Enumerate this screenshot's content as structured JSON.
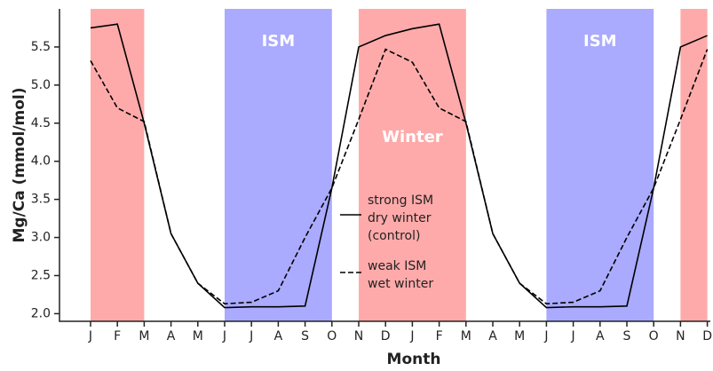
{
  "chart_data": {
    "type": "line",
    "x_label": "Month",
    "y_label": "Mg/Ca (mmol/mol)",
    "categories": [
      "J",
      "F",
      "M",
      "A",
      "M",
      "J",
      "J",
      "A",
      "S",
      "O",
      "N",
      "D",
      "J",
      "F",
      "M",
      "A",
      "M",
      "J",
      "J",
      "A",
      "S",
      "O",
      "N",
      "D"
    ],
    "ylim": [
      1.9,
      6.0
    ],
    "yticks": [
      {
        "value": 2.0,
        "label": "2.0"
      },
      2.5,
      {
        "value": 3.0,
        "label": "3.0"
      },
      3.5,
      {
        "value": 4.0,
        "label": "4.0"
      },
      4.5,
      {
        "value": 5.0,
        "label": "5.0"
      },
      5.5
    ],
    "bands": [
      {
        "from": 0,
        "to": 2,
        "color": "#ffaaaa"
      },
      {
        "from": 5,
        "to": 9,
        "color": "#aaaaff",
        "label": "ISM"
      },
      {
        "from": 10,
        "to": 14,
        "color": "#ffaaaa",
        "label": "Winter"
      },
      {
        "from": 17,
        "to": 21,
        "color": "#aaaaff",
        "label": "ISM"
      },
      {
        "from": 22,
        "to": 23,
        "color": "#ffaaaa"
      }
    ],
    "series": [
      {
        "name": "strong ISM\ndry winter\n(control)",
        "color": "#000000",
        "dash": "solid",
        "values": [
          5.75,
          5.8,
          4.5,
          3.05,
          2.4,
          2.08,
          2.09,
          2.09,
          2.1,
          3.65,
          5.5,
          5.65,
          5.74,
          5.8,
          4.5,
          3.05,
          2.4,
          2.08,
          2.09,
          2.09,
          2.1,
          3.65,
          5.5,
          5.65
        ]
      },
      {
        "name": "weak ISM\nwet winter",
        "color": "#000000",
        "dash": "dashed",
        "values": [
          5.32,
          4.7,
          4.52,
          3.05,
          2.4,
          2.13,
          2.15,
          2.3,
          3.0,
          3.65,
          4.55,
          5.47,
          5.3,
          4.7,
          4.52,
          3.05,
          2.4,
          2.13,
          2.15,
          2.3,
          3.0,
          3.65,
          4.55,
          5.47
        ]
      }
    ]
  }
}
